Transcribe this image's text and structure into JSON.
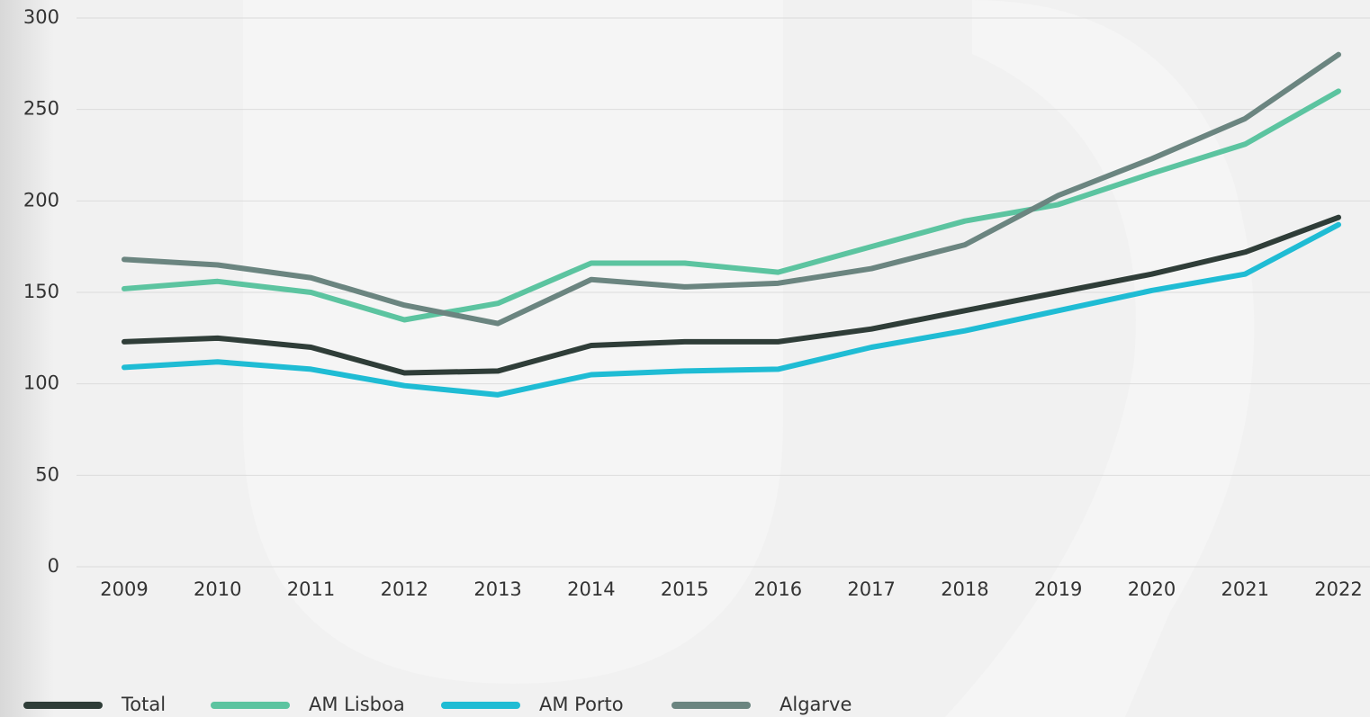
{
  "chart_data": {
    "type": "line",
    "categories": [
      "2009",
      "2010",
      "2011",
      "2012",
      "2013",
      "2014",
      "2015",
      "2016",
      "2017",
      "2018",
      "2019",
      "2020",
      "2021",
      "2022"
    ],
    "series": [
      {
        "name": "Total",
        "color": "#2f3d38",
        "values": [
          123,
          125,
          120,
          106,
          107,
          121,
          123,
          123,
          130,
          140,
          150,
          160,
          172,
          191
        ]
      },
      {
        "name": "AM Lisboa",
        "color": "#5cc4a0",
        "values": [
          152,
          156,
          150,
          135,
          144,
          166,
          166,
          161,
          175,
          189,
          198,
          215,
          231,
          260
        ]
      },
      {
        "name": "AM Porto",
        "color": "#1fbcd4",
        "values": [
          109,
          112,
          108,
          99,
          94,
          105,
          107,
          108,
          120,
          129,
          140,
          151,
          160,
          187
        ]
      },
      {
        "name": "Algarve",
        "color": "#6b8580",
        "values": [
          168,
          165,
          158,
          143,
          133,
          157,
          153,
          155,
          163,
          176,
          203,
          223,
          245,
          280
        ]
      }
    ],
    "ylim": [
      0,
      300
    ],
    "yticks": [
      0,
      50,
      100,
      150,
      200,
      250,
      300
    ],
    "grid": true
  }
}
